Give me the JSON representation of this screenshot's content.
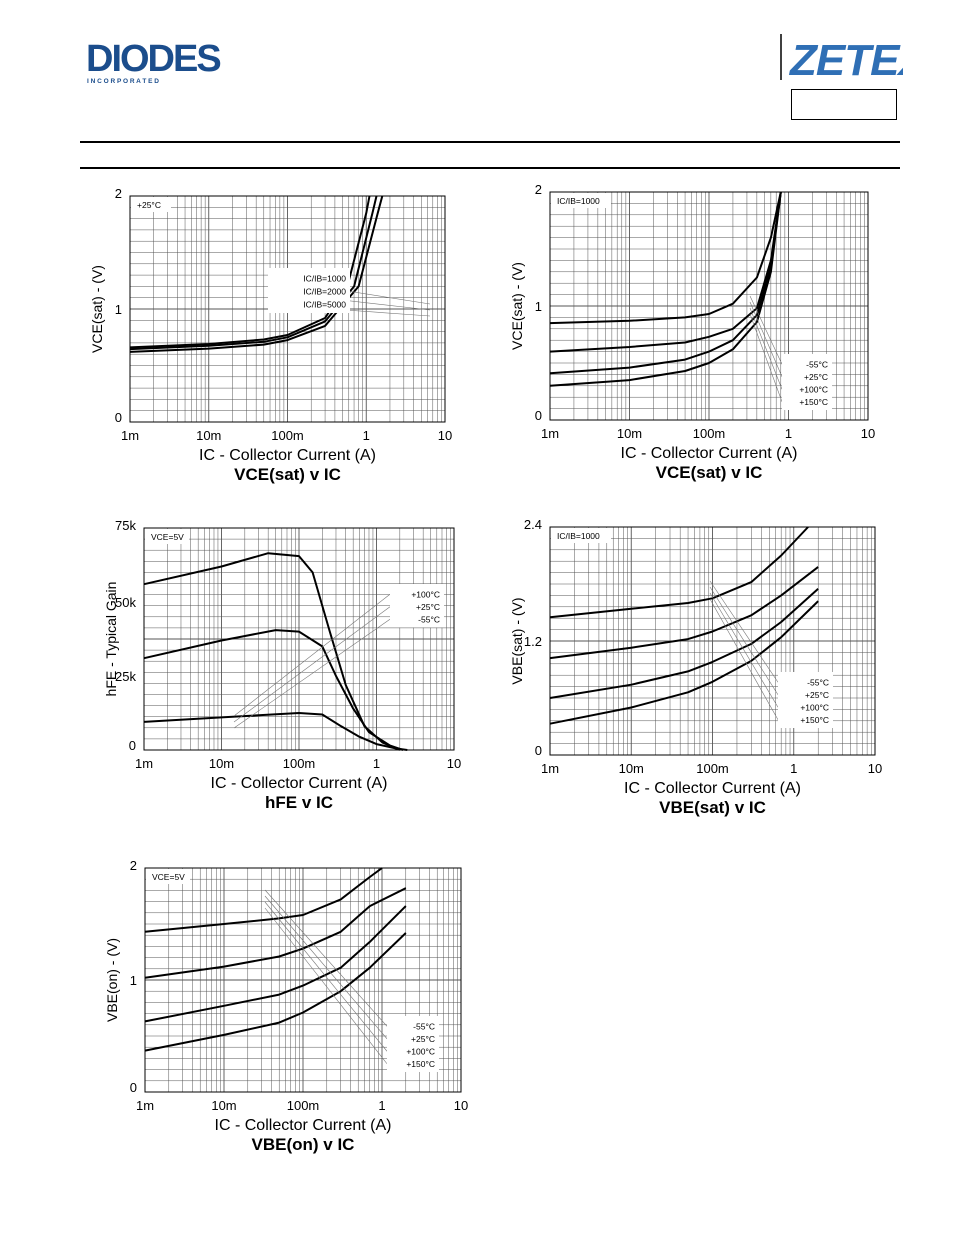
{
  "header": {
    "brand_left": "DIODES",
    "brand_left_sub": "I N C O R P O R A T E D",
    "brand_right": "ZETEX"
  },
  "colors": {
    "grid": "#555555",
    "curve": "#000000",
    "leader": "#777777"
  },
  "chart_data": [
    {
      "type": "line",
      "title": "VCE(sat) v IC",
      "xlabel": "IC - Collector Current (A)",
      "ylabel": "VCE(sat) - (V)",
      "xscale": "log",
      "xlim": [
        0.001,
        10
      ],
      "ylim": [
        0,
        2
      ],
      "xticks": [
        "1m",
        "10m",
        "100m",
        "1",
        "10"
      ],
      "yticks": [
        "0",
        "1",
        "2"
      ],
      "condition": "+25°C",
      "legend": [
        "IC/IB=1000",
        "IC/IB=2000",
        "IC/IB=5000"
      ],
      "series": [
        {
          "name": "IC/IB=1000",
          "points": [
            [
              0.001,
              0.66
            ],
            [
              0.01,
              0.69
            ],
            [
              0.05,
              0.73
            ],
            [
              0.1,
              0.77
            ],
            [
              0.3,
              0.92
            ],
            [
              0.6,
              1.25
            ],
            [
              1,
              1.85
            ],
            [
              1.1,
              2.0
            ]
          ]
        },
        {
          "name": "IC/IB=2000",
          "points": [
            [
              0.001,
              0.645
            ],
            [
              0.01,
              0.675
            ],
            [
              0.05,
              0.71
            ],
            [
              0.1,
              0.75
            ],
            [
              0.3,
              0.89
            ],
            [
              0.7,
              1.2
            ],
            [
              1.2,
              1.85
            ],
            [
              1.35,
              2.0
            ]
          ]
        },
        {
          "name": "IC/IB=5000",
          "points": [
            [
              0.001,
              0.62
            ],
            [
              0.01,
              0.65
            ],
            [
              0.05,
              0.685
            ],
            [
              0.1,
              0.725
            ],
            [
              0.3,
              0.85
            ],
            [
              0.8,
              1.2
            ],
            [
              1.4,
              1.85
            ],
            [
              1.6,
              2.0
            ]
          ]
        }
      ]
    },
    {
      "type": "line",
      "title": "VCE(sat) v IC",
      "xlabel": "IC - Collector Current (A)",
      "ylabel": "VCE(sat) - (V)",
      "xscale": "log",
      "xlim": [
        0.001,
        10
      ],
      "ylim": [
        0,
        2
      ],
      "xticks": [
        "1m",
        "10m",
        "100m",
        "1",
        "10"
      ],
      "yticks": [
        "0",
        "1",
        "2"
      ],
      "condition": "IC/IB=1000",
      "legend": [
        "-55°C",
        "+25°C",
        "+100°C",
        "+150°C"
      ],
      "series": [
        {
          "name": "-55°C",
          "points": [
            [
              0.001,
              0.85
            ],
            [
              0.01,
              0.87
            ],
            [
              0.05,
              0.9
            ],
            [
              0.1,
              0.93
            ],
            [
              0.2,
              1.02
            ],
            [
              0.4,
              1.25
            ],
            [
              0.6,
              1.6
            ],
            [
              0.8,
              2.0
            ]
          ]
        },
        {
          "name": "+25°C",
          "points": [
            [
              0.001,
              0.6
            ],
            [
              0.01,
              0.64
            ],
            [
              0.05,
              0.68
            ],
            [
              0.1,
              0.73
            ],
            [
              0.2,
              0.8
            ],
            [
              0.4,
              0.98
            ],
            [
              0.6,
              1.4
            ],
            [
              0.8,
              2.0
            ]
          ]
        },
        {
          "name": "+100°C",
          "points": [
            [
              0.001,
              0.41
            ],
            [
              0.01,
              0.46
            ],
            [
              0.05,
              0.53
            ],
            [
              0.1,
              0.6
            ],
            [
              0.2,
              0.7
            ],
            [
              0.4,
              0.92
            ],
            [
              0.6,
              1.35
            ],
            [
              0.8,
              2.0
            ]
          ]
        },
        {
          "name": "+150°C",
          "points": [
            [
              0.001,
              0.3
            ],
            [
              0.01,
              0.35
            ],
            [
              0.05,
              0.43
            ],
            [
              0.1,
              0.5
            ],
            [
              0.2,
              0.62
            ],
            [
              0.4,
              0.86
            ],
            [
              0.6,
              1.3
            ],
            [
              0.8,
              2.0
            ]
          ]
        }
      ]
    },
    {
      "type": "line",
      "title": "hFE v IC",
      "xlabel": "IC - Collector Current (A)",
      "ylabel": "hFE - Typical Gain",
      "xscale": "log",
      "xlim": [
        0.001,
        10
      ],
      "ylim": [
        0,
        75000
      ],
      "xticks": [
        "1m",
        "10m",
        "100m",
        "1",
        "10"
      ],
      "yticks": [
        "0",
        "25k",
        "50k",
        "75k"
      ],
      "condition": "VCE=5V",
      "legend": [
        "+100°C",
        "+25°C",
        "-55°C"
      ],
      "series": [
        {
          "name": "+100°C",
          "points": [
            [
              0.001,
              56000
            ],
            [
              0.01,
              62000
            ],
            [
              0.04,
              66500
            ],
            [
              0.1,
              65500
            ],
            [
              0.15,
              60000
            ],
            [
              0.25,
              40000
            ],
            [
              0.4,
              22000
            ],
            [
              0.7,
              8000
            ],
            [
              1.2,
              2500
            ],
            [
              2,
              0
            ]
          ]
        },
        {
          "name": "+25°C",
          "points": [
            [
              0.001,
              31000
            ],
            [
              0.01,
              37000
            ],
            [
              0.05,
              40500
            ],
            [
              0.1,
              40000
            ],
            [
              0.2,
              35000
            ],
            [
              0.3,
              25000
            ],
            [
              0.5,
              14000
            ],
            [
              0.8,
              6000
            ],
            [
              1.5,
              1500
            ],
            [
              2.2,
              0
            ]
          ]
        },
        {
          "name": "-55°C",
          "points": [
            [
              0.001,
              9500
            ],
            [
              0.01,
              11000
            ],
            [
              0.1,
              12500
            ],
            [
              0.2,
              12000
            ],
            [
              0.35,
              8000
            ],
            [
              0.6,
              4500
            ],
            [
              1,
              2000
            ],
            [
              1.8,
              500
            ],
            [
              2.5,
              0
            ]
          ]
        }
      ]
    },
    {
      "type": "line",
      "title": "VBE(sat) v IC",
      "xlabel": "IC - Collector Current (A)",
      "ylabel": "VBE(sat) - (V)",
      "xscale": "log",
      "xlim": [
        0.001,
        10
      ],
      "ylim": [
        0,
        2.4
      ],
      "xticks": [
        "1m",
        "10m",
        "100m",
        "1",
        "10"
      ],
      "yticks": [
        "0",
        "1.2",
        "2.4"
      ],
      "condition": "IC/IB=1000",
      "legend": [
        "-55°C",
        "+25°C",
        "+100°C",
        "+150°C"
      ],
      "series": [
        {
          "name": "-55°C",
          "points": [
            [
              0.001,
              1.45
            ],
            [
              0.01,
              1.54
            ],
            [
              0.05,
              1.6
            ],
            [
              0.1,
              1.65
            ],
            [
              0.3,
              1.82
            ],
            [
              0.7,
              2.1
            ],
            [
              1.5,
              2.4
            ]
          ]
        },
        {
          "name": "+25°C",
          "points": [
            [
              0.001,
              1.02
            ],
            [
              0.01,
              1.13
            ],
            [
              0.05,
              1.22
            ],
            [
              0.1,
              1.3
            ],
            [
              0.3,
              1.47
            ],
            [
              0.7,
              1.68
            ],
            [
              2,
              1.98
            ]
          ]
        },
        {
          "name": "+100°C",
          "points": [
            [
              0.001,
              0.6
            ],
            [
              0.01,
              0.74
            ],
            [
              0.05,
              0.88
            ],
            [
              0.1,
              0.98
            ],
            [
              0.3,
              1.17
            ],
            [
              0.7,
              1.4
            ],
            [
              2,
              1.75
            ]
          ]
        },
        {
          "name": "+150°C",
          "points": [
            [
              0.001,
              0.33
            ],
            [
              0.01,
              0.5
            ],
            [
              0.05,
              0.66
            ],
            [
              0.1,
              0.77
            ],
            [
              0.3,
              0.99
            ],
            [
              0.7,
              1.24
            ],
            [
              2,
              1.62
            ]
          ]
        }
      ]
    },
    {
      "type": "line",
      "title": "VBE(on) v IC",
      "xlabel": "IC - Collector Current (A)",
      "ylabel": "VBE(on) - (V)",
      "xscale": "log",
      "xlim": [
        0.001,
        10
      ],
      "ylim": [
        0,
        2
      ],
      "xticks": [
        "1m",
        "10m",
        "100m",
        "1",
        "10"
      ],
      "yticks": [
        "0",
        "1",
        "2"
      ],
      "condition": "VCE=5V",
      "legend": [
        "-55°C",
        "+25°C",
        "+100°C",
        "+150°C"
      ],
      "series": [
        {
          "name": "-55°C",
          "points": [
            [
              0.001,
              1.43
            ],
            [
              0.01,
              1.5
            ],
            [
              0.05,
              1.55
            ],
            [
              0.1,
              1.58
            ],
            [
              0.3,
              1.72
            ],
            [
              0.7,
              1.92
            ],
            [
              1,
              2.0
            ]
          ]
        },
        {
          "name": "+25°C",
          "points": [
            [
              0.001,
              1.02
            ],
            [
              0.01,
              1.12
            ],
            [
              0.05,
              1.21
            ],
            [
              0.1,
              1.28
            ],
            [
              0.3,
              1.43
            ],
            [
              0.7,
              1.66
            ],
            [
              2,
              1.82
            ]
          ]
        },
        {
          "name": "+100°C",
          "points": [
            [
              0.001,
              0.63
            ],
            [
              0.01,
              0.77
            ],
            [
              0.05,
              0.87
            ],
            [
              0.1,
              0.95
            ],
            [
              0.3,
              1.11
            ],
            [
              0.7,
              1.34
            ],
            [
              2,
              1.66
            ]
          ]
        },
        {
          "name": "+150°C",
          "points": [
            [
              0.001,
              0.37
            ],
            [
              0.01,
              0.51
            ],
            [
              0.05,
              0.62
            ],
            [
              0.1,
              0.71
            ],
            [
              0.3,
              0.9
            ],
            [
              0.7,
              1.11
            ],
            [
              2,
              1.42
            ]
          ]
        }
      ]
    }
  ]
}
